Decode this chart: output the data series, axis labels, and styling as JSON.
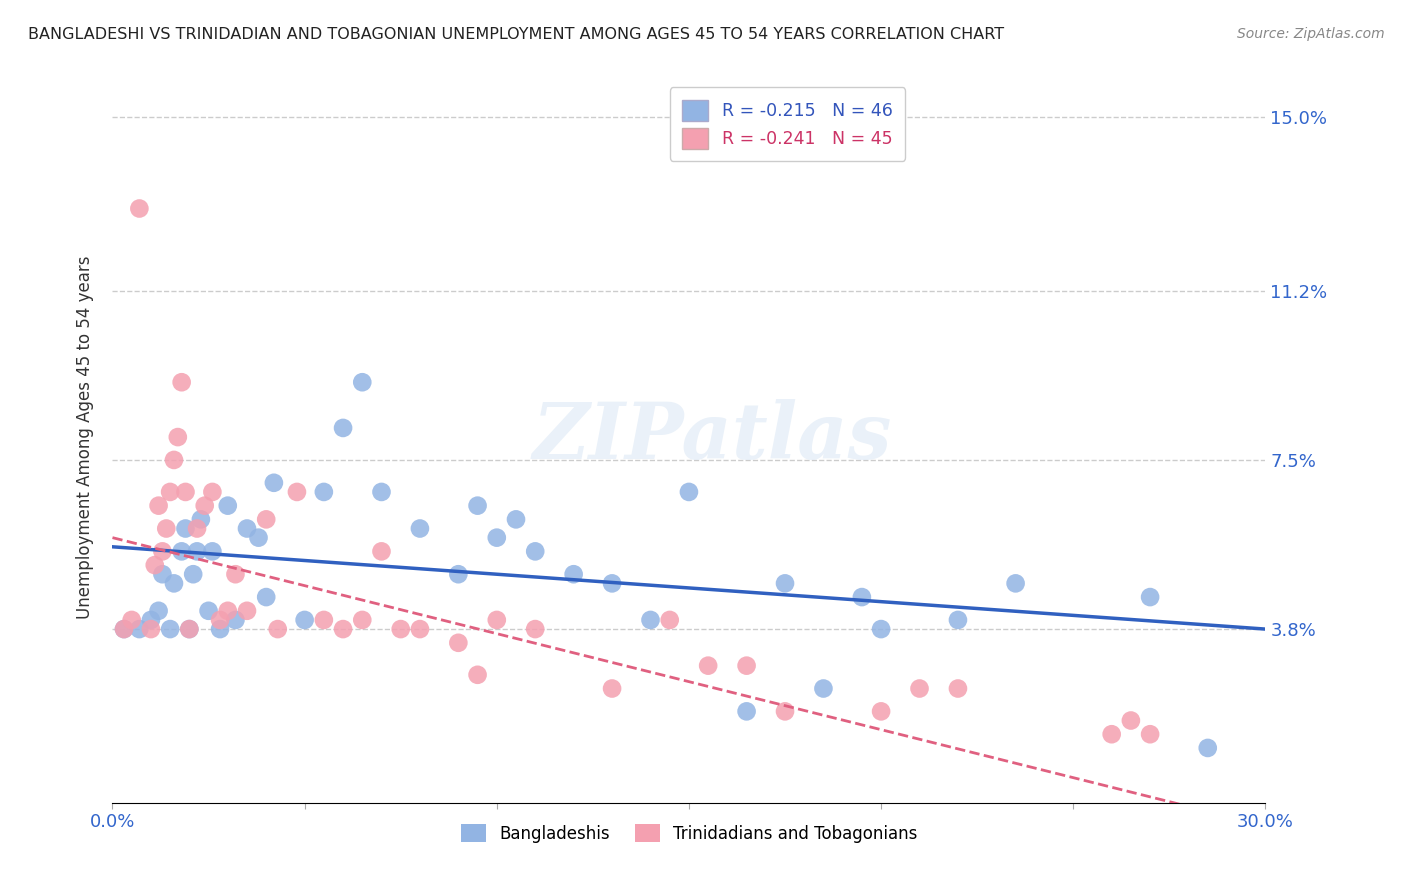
{
  "title": "BANGLADESHI VS TRINIDADIAN AND TOBAGONIAN UNEMPLOYMENT AMONG AGES 45 TO 54 YEARS CORRELATION CHART",
  "source": "Source: ZipAtlas.com",
  "ylabel": "Unemployment Among Ages 45 to 54 years",
  "xlim": [
    0.0,
    0.3
  ],
  "ylim": [
    0.0,
    0.16
  ],
  "y_tick_labels_right": [
    "15.0%",
    "11.2%",
    "7.5%",
    "3.8%"
  ],
  "y_tick_vals_right": [
    0.15,
    0.112,
    0.075,
    0.038
  ],
  "bangladeshi_color": "#92b4e3",
  "trinidadian_color": "#f4a0b0",
  "bangladeshi_line_color": "#3060c0",
  "trinidadian_line_color": "#e06080",
  "watermark": "ZIPatlas",
  "background_color": "#ffffff",
  "grid_color": "#cccccc",
  "bangladeshi_x": [
    0.003,
    0.007,
    0.01,
    0.012,
    0.013,
    0.015,
    0.016,
    0.018,
    0.019,
    0.02,
    0.021,
    0.022,
    0.023,
    0.025,
    0.026,
    0.028,
    0.03,
    0.032,
    0.035,
    0.038,
    0.04,
    0.042,
    0.05,
    0.055,
    0.06,
    0.065,
    0.07,
    0.08,
    0.09,
    0.095,
    0.1,
    0.105,
    0.11,
    0.12,
    0.13,
    0.14,
    0.15,
    0.165,
    0.175,
    0.185,
    0.195,
    0.2,
    0.22,
    0.235,
    0.27,
    0.285
  ],
  "bangladeshi_y": [
    0.038,
    0.038,
    0.04,
    0.042,
    0.05,
    0.038,
    0.048,
    0.055,
    0.06,
    0.038,
    0.05,
    0.055,
    0.062,
    0.042,
    0.055,
    0.038,
    0.065,
    0.04,
    0.06,
    0.058,
    0.045,
    0.07,
    0.04,
    0.068,
    0.082,
    0.092,
    0.068,
    0.06,
    0.05,
    0.065,
    0.058,
    0.062,
    0.055,
    0.05,
    0.048,
    0.04,
    0.068,
    0.02,
    0.048,
    0.025,
    0.045,
    0.038,
    0.04,
    0.048,
    0.045,
    0.012
  ],
  "trinidadian_x": [
    0.003,
    0.005,
    0.007,
    0.01,
    0.011,
    0.012,
    0.013,
    0.014,
    0.015,
    0.016,
    0.017,
    0.018,
    0.019,
    0.02,
    0.022,
    0.024,
    0.026,
    0.028,
    0.03,
    0.032,
    0.035,
    0.04,
    0.043,
    0.048,
    0.055,
    0.06,
    0.065,
    0.07,
    0.075,
    0.08,
    0.09,
    0.095,
    0.1,
    0.11,
    0.13,
    0.145,
    0.155,
    0.165,
    0.175,
    0.2,
    0.21,
    0.22,
    0.26,
    0.265,
    0.27
  ],
  "trinidadian_y": [
    0.038,
    0.04,
    0.13,
    0.038,
    0.052,
    0.065,
    0.055,
    0.06,
    0.068,
    0.075,
    0.08,
    0.092,
    0.068,
    0.038,
    0.06,
    0.065,
    0.068,
    0.04,
    0.042,
    0.05,
    0.042,
    0.062,
    0.038,
    0.068,
    0.04,
    0.038,
    0.04,
    0.055,
    0.038,
    0.038,
    0.035,
    0.028,
    0.04,
    0.038,
    0.025,
    0.04,
    0.03,
    0.03,
    0.02,
    0.02,
    0.025,
    0.025,
    0.015,
    0.018,
    0.015
  ]
}
